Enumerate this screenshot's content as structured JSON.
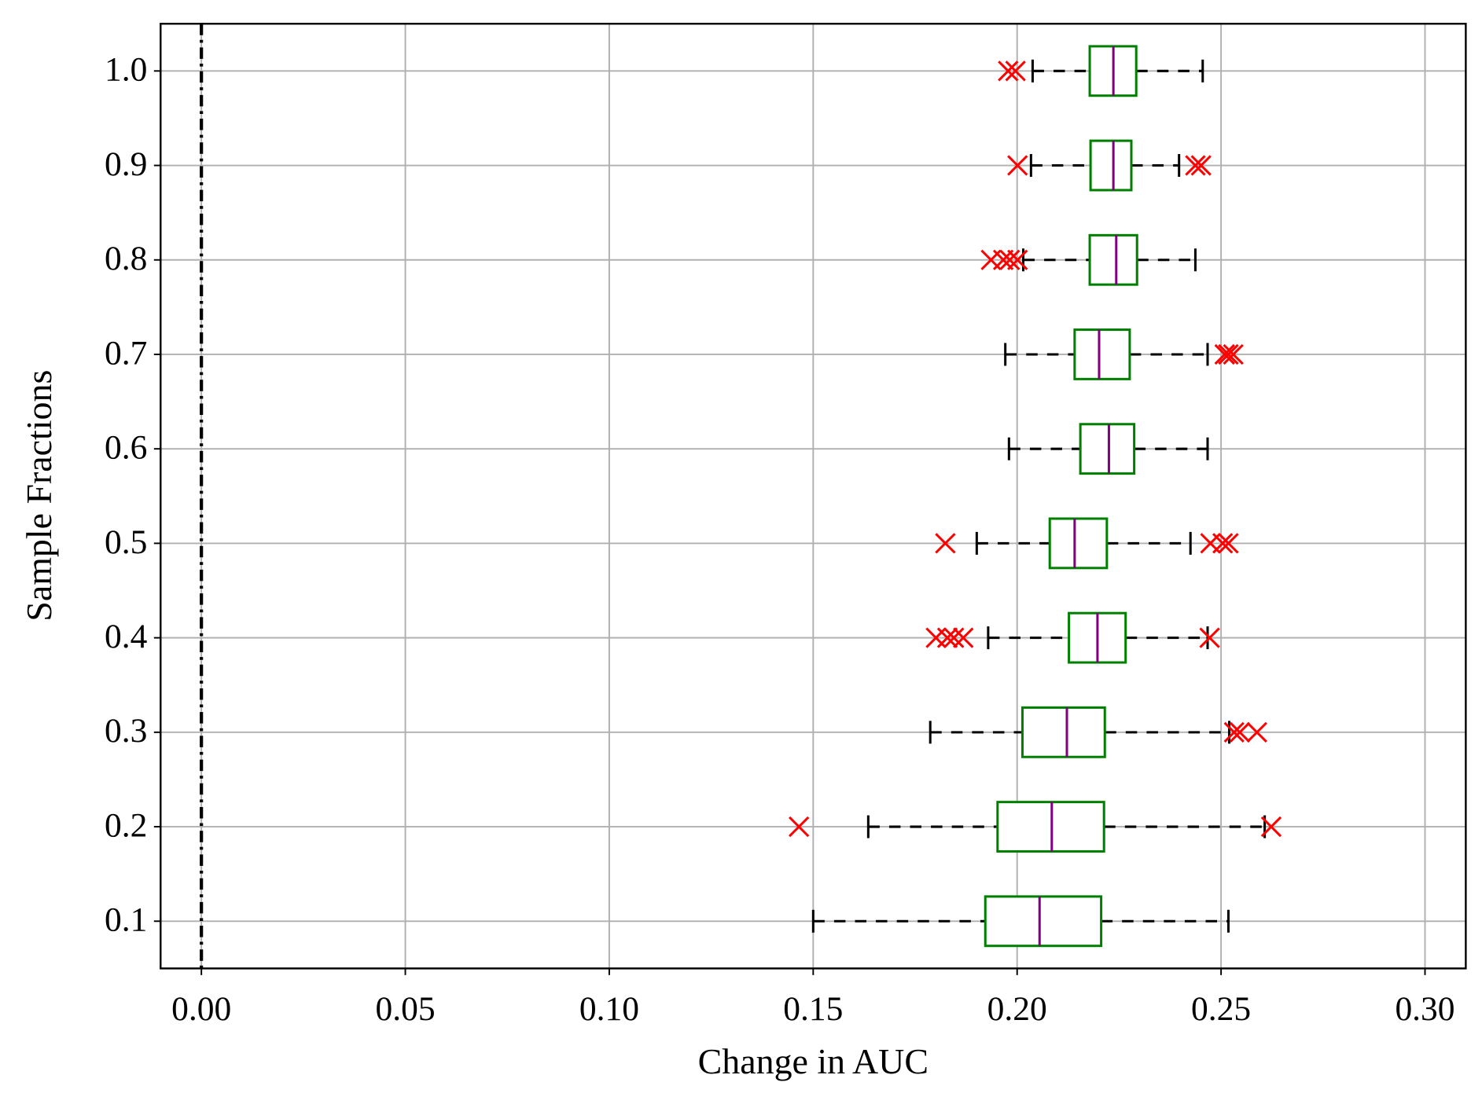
{
  "chart_data": {
    "type": "boxplot",
    "orientation": "horizontal",
    "xlabel": "Change in AUC",
    "ylabel": "Sample Fractions",
    "categories": [
      "0.1",
      "0.2",
      "0.3",
      "0.4",
      "0.5",
      "0.6",
      "0.7",
      "0.8",
      "0.9",
      "1.0"
    ],
    "boxes": [
      {
        "whislo": 0.15,
        "q1": 0.1922,
        "med": 0.2055,
        "q3": 0.2206,
        "whishi": 0.2518,
        "fliers": []
      },
      {
        "whislo": 0.1635,
        "q1": 0.1952,
        "med": 0.2085,
        "q3": 0.2213,
        "whishi": 0.2607,
        "fliers": [
          0.1465,
          0.2623
        ]
      },
      {
        "whislo": 0.1787,
        "q1": 0.2013,
        "med": 0.2122,
        "q3": 0.2215,
        "whishi": 0.252,
        "fliers": [
          0.2532,
          0.2546,
          0.2588
        ]
      },
      {
        "whislo": 0.1929,
        "q1": 0.2127,
        "med": 0.2197,
        "q3": 0.2266,
        "whishi": 0.2467,
        "fliers": [
          0.1801,
          0.1829,
          0.1845,
          0.1868,
          0.2472
        ]
      },
      {
        "whislo": 0.1901,
        "q1": 0.208,
        "med": 0.2141,
        "q3": 0.222,
        "whishi": 0.2425,
        "fliers": [
          0.1824,
          0.2474,
          0.2504,
          0.2518
        ]
      },
      {
        "whislo": 0.198,
        "q1": 0.2155,
        "med": 0.2225,
        "q3": 0.2287,
        "whishi": 0.2467,
        "fliers": []
      },
      {
        "whislo": 0.1971,
        "q1": 0.2141,
        "med": 0.2201,
        "q3": 0.2276,
        "whishi": 0.2467,
        "fliers": [
          0.2509,
          0.2518,
          0.253
        ]
      },
      {
        "whislo": 0.2015,
        "q1": 0.2178,
        "med": 0.2243,
        "q3": 0.2294,
        "whishi": 0.2437,
        "fliers": [
          0.1936,
          0.1966,
          0.1982,
          0.2001
        ]
      },
      {
        "whislo": 0.2034,
        "q1": 0.218,
        "med": 0.2236,
        "q3": 0.228,
        "whishi": 0.2397,
        "fliers": [
          0.2001,
          0.2437,
          0.2451
        ]
      },
      {
        "whislo": 0.2038,
        "q1": 0.2178,
        "med": 0.2236,
        "q3": 0.2292,
        "whishi": 0.2455,
        "fliers": [
          0.1978,
          0.1996
        ]
      }
    ],
    "xlim": [
      -0.01,
      0.31
    ],
    "xticks": [
      {
        "value": 0,
        "label": "0.00"
      },
      {
        "value": 0.05,
        "label": "0.05"
      },
      {
        "value": 0.1,
        "label": "0.10"
      },
      {
        "value": 0.15,
        "label": "0.15"
      },
      {
        "value": 0.2,
        "label": "0.20"
      },
      {
        "value": 0.25,
        "label": "0.25"
      },
      {
        "value": 0.3,
        "label": "0.30"
      }
    ],
    "grid": true,
    "reference_line": 0,
    "box_color": "#008000",
    "median_color": "#800080",
    "whisker_color": "#000000",
    "flier_color": "#ff0000"
  }
}
